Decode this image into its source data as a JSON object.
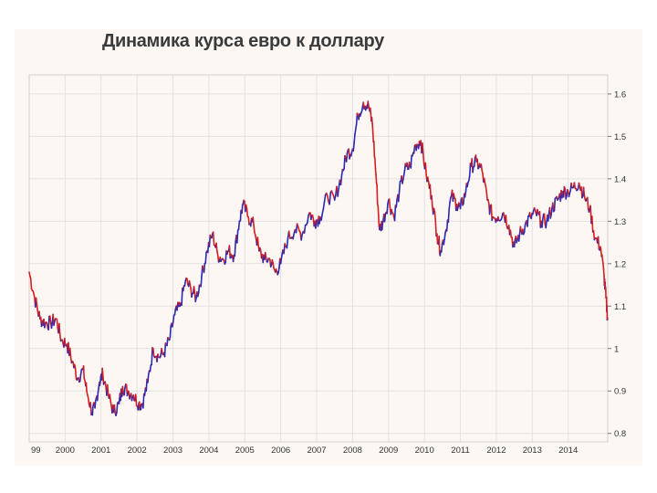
{
  "colors": {
    "rise": "#2a2ab4",
    "fall": "#d42020",
    "grid": "#e2e2e2",
    "frame": "#777777"
  },
  "chart_data": {
    "type": "line",
    "title": "Динамика курса евро к доллару",
    "xlabel": "",
    "ylabel": "",
    "x_ticks": [
      "99",
      "2000",
      "2001",
      "2002",
      "2003",
      "2004",
      "2005",
      "2006",
      "2007",
      "2008",
      "2009",
      "2010",
      "2011",
      "2012",
      "2013",
      "2014"
    ],
    "y_ticks": [
      "0.8",
      "0.9",
      "1",
      "1.1",
      "1.2",
      "1.3",
      "1.4",
      "1.5",
      "1.6"
    ],
    "ylim": [
      0.8,
      1.6
    ],
    "xlim": [
      1999.0,
      2015.1
    ],
    "grid": true,
    "axis_position": "right",
    "series": [
      {
        "x": [
          1999.0,
          1999.15,
          1999.3,
          1999.45,
          1999.6,
          1999.75,
          1999.9,
          2000.05,
          2000.2,
          2000.35,
          2000.5,
          2000.6,
          2000.75,
          2000.83,
          2000.95,
          2001.05,
          2001.2,
          2001.35,
          2001.5,
          2001.6,
          2001.75,
          2001.9,
          2002.05,
          2002.15,
          2002.3,
          2002.45,
          2002.6,
          2002.75,
          2002.9,
          2003.05,
          2003.2,
          2003.35,
          2003.5,
          2003.65,
          2003.8,
          2003.95,
          2004.1,
          2004.25,
          2004.4,
          2004.55,
          2004.7,
          2004.85,
          2004.95,
          2005.1,
          2005.25,
          2005.4,
          2005.55,
          2005.7,
          2005.85,
          2006.0,
          2006.2,
          2006.4,
          2006.6,
          2006.8,
          2006.95,
          2007.1,
          2007.3,
          2007.5,
          2007.7,
          2007.85,
          2008.0,
          2008.15,
          2008.3,
          2008.45,
          2008.55,
          2008.65,
          2008.75,
          2008.85,
          2009.0,
          2009.15,
          2009.3,
          2009.45,
          2009.6,
          2009.75,
          2009.9,
          2010.05,
          2010.2,
          2010.35,
          2010.45,
          2010.6,
          2010.75,
          2010.9,
          2011.0,
          2011.15,
          2011.3,
          2011.45,
          2011.6,
          2011.75,
          2011.9,
          2012.05,
          2012.2,
          2012.35,
          2012.5,
          2012.65,
          2012.8,
          2012.95,
          2013.1,
          2013.25,
          2013.4,
          2013.55,
          2013.7,
          2013.85,
          2014.0,
          2014.15,
          2014.3,
          2014.45,
          2014.6,
          2014.75,
          2014.9,
          2015.0,
          2015.05,
          2015.1
        ],
        "values": [
          1.18,
          1.12,
          1.07,
          1.06,
          1.06,
          1.07,
          1.02,
          1.01,
          0.97,
          0.93,
          0.95,
          0.9,
          0.85,
          0.86,
          0.92,
          0.94,
          0.89,
          0.85,
          0.87,
          0.91,
          0.9,
          0.89,
          0.87,
          0.87,
          0.92,
          1.0,
          0.98,
          0.99,
          1.02,
          1.08,
          1.1,
          1.16,
          1.14,
          1.12,
          1.17,
          1.23,
          1.27,
          1.22,
          1.21,
          1.23,
          1.22,
          1.3,
          1.34,
          1.31,
          1.29,
          1.23,
          1.21,
          1.21,
          1.18,
          1.2,
          1.26,
          1.28,
          1.27,
          1.32,
          1.3,
          1.31,
          1.36,
          1.35,
          1.41,
          1.46,
          1.47,
          1.55,
          1.58,
          1.57,
          1.53,
          1.41,
          1.28,
          1.3,
          1.35,
          1.31,
          1.37,
          1.42,
          1.43,
          1.48,
          1.49,
          1.41,
          1.36,
          1.27,
          1.23,
          1.28,
          1.36,
          1.34,
          1.33,
          1.37,
          1.43,
          1.44,
          1.42,
          1.35,
          1.31,
          1.31,
          1.32,
          1.29,
          1.24,
          1.27,
          1.29,
          1.31,
          1.32,
          1.3,
          1.3,
          1.33,
          1.35,
          1.37,
          1.37,
          1.38,
          1.39,
          1.36,
          1.33,
          1.26,
          1.24,
          1.17,
          1.12,
          1.07
        ]
      }
    ]
  }
}
